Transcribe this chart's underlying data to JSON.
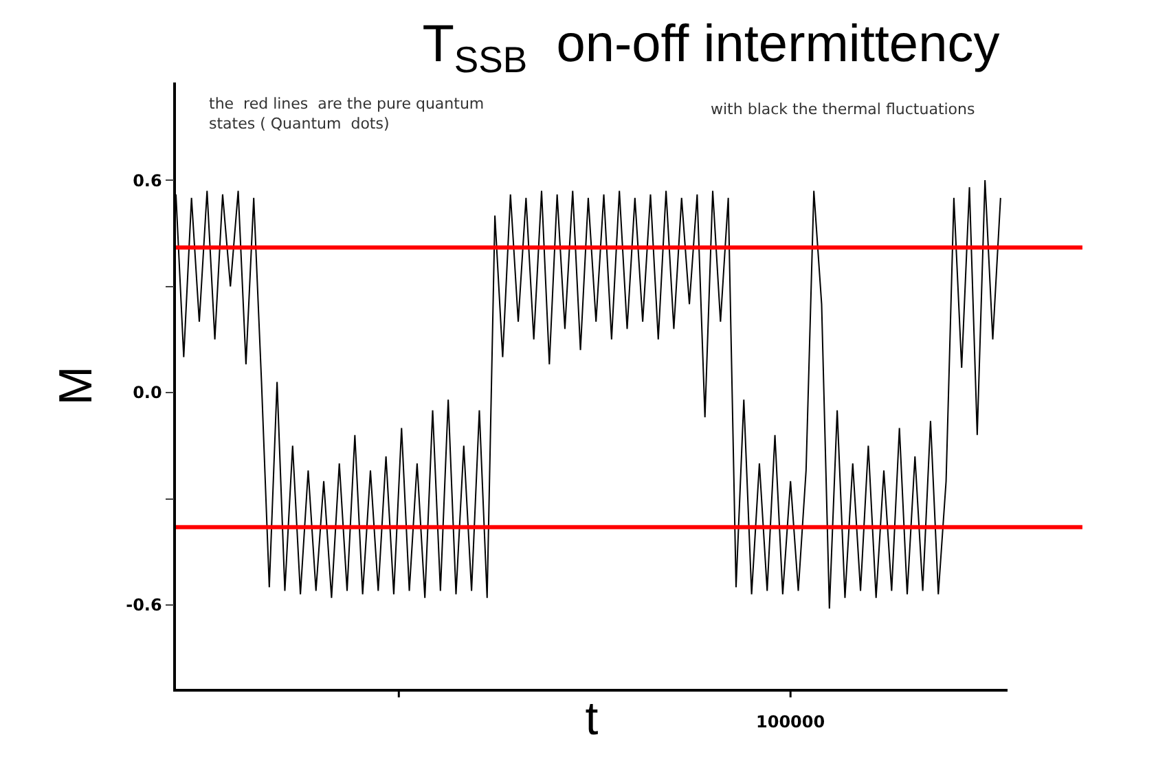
{
  "chart_data": {
    "type": "line",
    "title": "T$_{SSB}$  on-off intermittency",
    "xlabel": "t",
    "ylabel": "M",
    "annotations": [
      "the  red lines  are the pure quantum\nstates ( Quantum  dots)",
      "with black the thermal fluctuations",
      "100000"
    ],
    "categories": [
      null,
      null,
      null,
      null,
      null,
      null,
      null,
      null,
      null,
      null,
      null,
      null,
      null,
      null,
      null,
      null,
      null,
      null,
      null,
      null,
      null,
      null,
      null,
      null,
      null,
      null,
      null,
      null,
      null,
      null,
      null,
      null,
      null,
      null,
      null,
      null,
      null,
      null,
      null,
      null,
      null,
      null,
      null,
      null,
      null,
      null,
      null,
      null,
      null,
      null,
      null,
      null,
      null,
      null,
      null,
      null,
      null,
      null,
      null,
      null,
      null,
      null,
      null,
      null,
      null,
      null,
      null,
      null,
      null,
      null,
      null,
      null,
      null,
      null,
      null,
      null,
      null,
      null,
      null,
      null,
      null,
      null,
      null,
      null,
      null,
      null,
      null,
      null,
      null,
      null,
      null,
      null,
      null,
      null,
      null,
      null,
      null,
      null,
      null,
      null,
      null,
      null,
      null,
      null,
      null,
      null,
      null
    ],
    "series": [
      {
        "color": "#000000",
        "values": [
          0.56,
          0.1,
          0.55,
          0.2,
          0.57,
          0.15,
          0.56,
          0.3,
          0.57,
          0.08,
          0.55,
          0.03,
          -0.55,
          0.03,
          -0.56,
          -0.15,
          -0.57,
          -0.22,
          -0.56,
          -0.25,
          -0.58,
          -0.2,
          -0.56,
          -0.12,
          -0.57,
          -0.22,
          -0.56,
          -0.18,
          -0.57,
          -0.1,
          -0.56,
          -0.2,
          -0.58,
          -0.05,
          -0.56,
          -0.02,
          -0.57,
          -0.15,
          -0.56,
          -0.05,
          -0.58,
          0.5,
          0.1,
          0.56,
          0.2,
          0.55,
          0.15,
          0.57,
          0.08,
          0.56,
          0.18,
          0.57,
          0.12,
          0.55,
          0.2,
          0.56,
          0.15,
          0.57,
          0.18,
          0.55,
          0.2,
          0.56,
          0.15,
          0.57,
          0.18,
          0.55,
          0.25,
          0.56,
          -0.07,
          0.57,
          0.2,
          0.55,
          -0.55,
          -0.02,
          -0.57,
          -0.2,
          -0.56,
          -0.12,
          -0.57,
          -0.25,
          -0.56,
          -0.22,
          0.57,
          0.25,
          -0.61,
          -0.05,
          -0.58,
          -0.2,
          -0.56,
          -0.15,
          -0.58,
          -0.22,
          -0.56,
          -0.1,
          -0.57,
          -0.18,
          -0.56,
          -0.08,
          -0.57,
          -0.25,
          0.55,
          0.07,
          0.58,
          -0.12,
          0.6,
          0.15,
          0.55
        ]
      }
    ],
    "ylim": [
      -0.837,
      0.876
    ],
    "yticks": [
      {
        "value": 0.6,
        "label": "0.6"
      },
      {
        "value": 0.3,
        "label": null
      },
      {
        "value": 0,
        "label": "0.0"
      },
      {
        "value": -0.3,
        "label": null
      },
      {
        "value": -0.6,
        "label": "-0.6"
      }
    ],
    "ref_lines": [
      {
        "axis": "y",
        "value": 0.41,
        "color": "#ff0000"
      },
      {
        "axis": "y",
        "value": -0.38,
        "color": "#ff0000"
      }
    ],
    "marker": "none",
    "line_style": "solid"
  }
}
